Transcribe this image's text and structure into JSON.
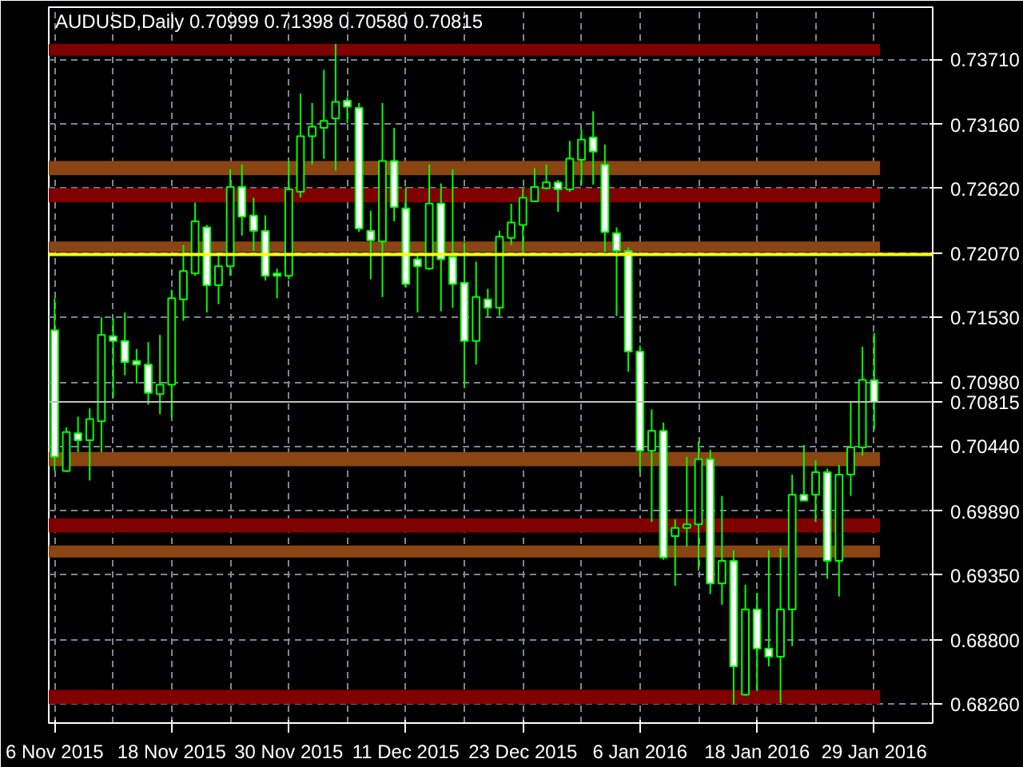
{
  "chart_data": {
    "type": "candlestick",
    "title": "AUDUSD,Daily  0.70999 0.71398 0.70580 0.70815",
    "categories": [
      "6 Nov 2015",
      null,
      null,
      null,
      null,
      null,
      null,
      null,
      null,
      null,
      "18 Nov 2015",
      null,
      null,
      null,
      null,
      null,
      null,
      null,
      null,
      null,
      "30 Nov 2015",
      null,
      null,
      null,
      null,
      null,
      null,
      null,
      null,
      null,
      "11 Dec 2015",
      null,
      null,
      null,
      null,
      null,
      null,
      null,
      null,
      null,
      "23 Dec 2015",
      null,
      null,
      null,
      null,
      null,
      null,
      null,
      null,
      null,
      "6 Jan 2016",
      null,
      null,
      null,
      null,
      null,
      null,
      null,
      null,
      null,
      "18 Jan 2016",
      null,
      null,
      null,
      null,
      null,
      null,
      null,
      null,
      null,
      "29 Jan 2016"
    ],
    "color": "#00ff00",
    "ohlc": [
      [
        0.7142,
        0.7169,
        0.7023,
        0.7035
      ],
      [
        0.7023,
        0.706,
        0.7022,
        0.7056
      ],
      [
        0.7055,
        0.7069,
        0.7039,
        0.7049
      ],
      [
        0.7049,
        0.7076,
        0.7015,
        0.7067
      ],
      [
        0.7065,
        0.7153,
        0.7039,
        0.7138
      ],
      [
        0.7137,
        0.7152,
        0.7085,
        0.7133
      ],
      [
        0.7133,
        0.7157,
        0.7104,
        0.7115
      ],
      [
        0.7116,
        0.7126,
        0.7097,
        0.7113
      ],
      [
        0.7113,
        0.7132,
        0.7079,
        0.7089
      ],
      [
        0.7088,
        0.7138,
        0.7071,
        0.7096
      ],
      [
        0.7096,
        0.7176,
        0.7068,
        0.7169
      ],
      [
        0.7168,
        0.7214,
        0.715,
        0.7192
      ],
      [
        0.719,
        0.725,
        0.7188,
        0.7234
      ],
      [
        0.7229,
        0.7231,
        0.7157,
        0.718
      ],
      [
        0.718,
        0.7206,
        0.7164,
        0.7196
      ],
      [
        0.7196,
        0.7278,
        0.7188,
        0.7263
      ],
      [
        0.7263,
        0.7282,
        0.7222,
        0.7238
      ],
      [
        0.7239,
        0.7254,
        0.7209,
        0.7226
      ],
      [
        0.7226,
        0.7239,
        0.7184,
        0.7188
      ],
      [
        0.719,
        0.7194,
        0.7169,
        0.7188
      ],
      [
        0.7188,
        0.7285,
        0.7185,
        0.7261
      ],
      [
        0.7259,
        0.7342,
        0.7254,
        0.7306
      ],
      [
        0.7306,
        0.7334,
        0.7282,
        0.7314
      ],
      [
        0.7313,
        0.7362,
        0.7287,
        0.7319
      ],
      [
        0.7321,
        0.7384,
        0.7277,
        0.7335
      ],
      [
        0.7336,
        0.7339,
        0.7317,
        0.7331
      ],
      [
        0.733,
        0.7334,
        0.7225,
        0.7228
      ],
      [
        0.7226,
        0.7243,
        0.7185,
        0.7218
      ],
      [
        0.7217,
        0.7334,
        0.717,
        0.7285
      ],
      [
        0.7285,
        0.7313,
        0.7234,
        0.7246
      ],
      [
        0.7245,
        0.7263,
        0.7178,
        0.7181
      ],
      [
        0.7202,
        0.7205,
        0.7157,
        0.7196
      ],
      [
        0.7194,
        0.7282,
        0.7193,
        0.7249
      ],
      [
        0.7249,
        0.7266,
        0.7158,
        0.7202
      ],
      [
        0.7204,
        0.7278,
        0.7161,
        0.7181
      ],
      [
        0.7182,
        0.7216,
        0.7093,
        0.7133
      ],
      [
        0.7133,
        0.72,
        0.7113,
        0.717
      ],
      [
        0.7168,
        0.7177,
        0.7153,
        0.7161
      ],
      [
        0.7161,
        0.7226,
        0.7154,
        0.7221
      ],
      [
        0.722,
        0.7249,
        0.7214,
        0.7233
      ],
      [
        0.7231,
        0.7262,
        0.7208,
        0.7254
      ],
      [
        0.7251,
        0.7279,
        0.7251,
        0.7263
      ],
      [
        0.7262,
        0.7282,
        0.7261,
        0.7267
      ],
      [
        0.7267,
        0.7269,
        0.7242,
        0.7261
      ],
      [
        0.7261,
        0.7302,
        0.7259,
        0.7287
      ],
      [
        0.7286,
        0.7311,
        0.7265,
        0.7303
      ],
      [
        0.7305,
        0.7327,
        0.7265,
        0.7293
      ],
      [
        0.7282,
        0.7299,
        0.7208,
        0.7225
      ],
      [
        0.7224,
        0.7229,
        0.7154,
        0.7209
      ],
      [
        0.7209,
        0.7212,
        0.7107,
        0.7124
      ],
      [
        0.7124,
        0.7129,
        0.7022,
        0.704
      ],
      [
        0.704,
        0.7075,
        0.698,
        0.7057
      ],
      [
        0.7057,
        0.7064,
        0.6948,
        0.695
      ],
      [
        0.6968,
        0.6982,
        0.6926,
        0.6975
      ],
      [
        0.6975,
        0.7035,
        0.6959,
        0.6978
      ],
      [
        0.6978,
        0.7048,
        0.6939,
        0.7033
      ],
      [
        0.7033,
        0.7041,
        0.6919,
        0.6928
      ],
      [
        0.6928,
        0.7002,
        0.691,
        0.6947
      ],
      [
        0.6947,
        0.6956,
        0.6826,
        0.6858
      ],
      [
        0.6834,
        0.6927,
        0.6833,
        0.6906
      ],
      [
        0.6906,
        0.692,
        0.6837,
        0.6873
      ],
      [
        0.6873,
        0.6956,
        0.6858,
        0.6866
      ],
      [
        0.6866,
        0.6958,
        0.6827,
        0.6906
      ],
      [
        0.6906,
        0.702,
        0.6875,
        0.7003
      ],
      [
        0.7003,
        0.7045,
        0.6998,
        0.6998
      ],
      [
        0.7003,
        0.7032,
        0.698,
        0.7022
      ],
      [
        0.7022,
        0.7025,
        0.6932,
        0.6947
      ],
      [
        0.6947,
        0.7028,
        0.6917,
        0.702
      ],
      [
        0.702,
        0.7081,
        0.7002,
        0.7043
      ],
      [
        0.7043,
        0.7128,
        0.7036,
        0.71
      ],
      [
        0.70999,
        0.71398,
        0.7058,
        0.70815
      ]
    ],
    "ylim": [
      0.681,
      0.7415
    ],
    "yticks": [
      {
        "value": 0.7371,
        "label": "0.73710"
      },
      {
        "value": 0.7316,
        "label": "0.73160"
      },
      {
        "value": 0.7262,
        "label": "0.72620"
      },
      {
        "value": 0.7207,
        "label": "0.72070"
      },
      {
        "value": 0.7153,
        "label": "0.71530"
      },
      {
        "value": 0.7098,
        "label": "0.70980"
      },
      {
        "value": 0.7044,
        "label": "0.70440"
      },
      {
        "value": 0.6989,
        "label": "0.69890"
      },
      {
        "value": 0.6935,
        "label": "0.69350"
      },
      {
        "value": 0.688,
        "label": "0.68800"
      },
      {
        "value": 0.6826,
        "label": "0.68260"
      }
    ],
    "grid": true,
    "bands": [
      {
        "axis": "y",
        "from": 0.7374,
        "to": 0.7384,
        "color": "#800000"
      },
      {
        "axis": "y",
        "from": 0.7273,
        "to": 0.7285,
        "color": "#8b4513"
      },
      {
        "axis": "y",
        "from": 0.725,
        "to": 0.7262,
        "color": "#800000"
      },
      {
        "axis": "y",
        "from": 0.7208,
        "to": 0.7217,
        "color": "#8b4513"
      },
      {
        "axis": "y",
        "from": 0.7027,
        "to": 0.7039,
        "color": "#8b4513"
      },
      {
        "axis": "y",
        "from": 0.6971,
        "to": 0.6983,
        "color": "#800000"
      },
      {
        "axis": "y",
        "from": 0.695,
        "to": 0.696,
        "color": "#8b4513"
      },
      {
        "axis": "y",
        "from": 0.6826,
        "to": 0.6838,
        "color": "#800000"
      }
    ],
    "ref_lines": [
      {
        "axis": "y",
        "value": 0.7206,
        "color": "#ffff00",
        "line_style": "solid"
      },
      {
        "axis": "y",
        "value": 0.70815,
        "label": "0.70815",
        "color": "#c0c0c0",
        "line_style": "solid"
      }
    ]
  }
}
